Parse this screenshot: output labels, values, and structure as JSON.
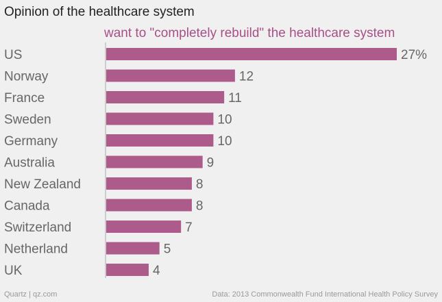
{
  "title": "Opinion of the healthcare system",
  "subtitle": "want to \"completely rebuild\" the healthcare system",
  "footer": {
    "source_left": "Quartz | qz.com",
    "source_right": "Data: 2013 Commonwealth Fund International Health Policy Survey"
  },
  "colors": {
    "bar": "#ad5b8b",
    "label": "#666666",
    "axis": "#aaaaaa"
  },
  "chart_data": {
    "type": "bar",
    "orientation": "horizontal",
    "title": "Opinion of the healthcare system",
    "subtitle": "want to \"completely rebuild\" the healthcare system",
    "categories": [
      "US",
      "Norway",
      "France",
      "Sweden",
      "Germany",
      "Australia",
      "New Zealand",
      "Canada",
      "Switzerland",
      "Netherland",
      "UK"
    ],
    "values": [
      27,
      12,
      11,
      10,
      10,
      9,
      8,
      8,
      7,
      5,
      4
    ],
    "value_labels": [
      "27%",
      "12",
      "11",
      "10",
      "10",
      "9",
      "8",
      "8",
      "7",
      "5",
      "4"
    ],
    "unit": "%",
    "xlim": [
      0,
      27
    ]
  }
}
